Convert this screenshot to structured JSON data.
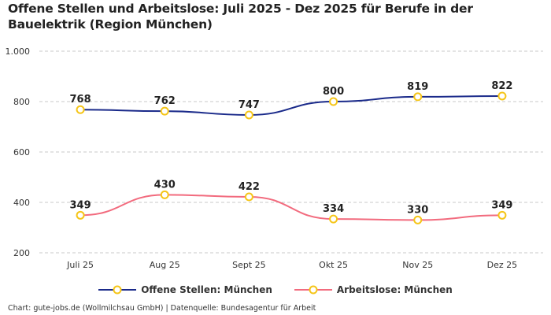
{
  "title": "Offene Stellen und Arbeitslose: Juli 2025 - Dez 2025 für Berufe in der Bauelektrik (Region München)",
  "source": "Chart: gute-jobs.de (Wollmilchsau GmbH) | Datenquelle: Bundesagentur für Arbeit",
  "chart_data": {
    "type": "line",
    "categories": [
      "Juli 25",
      "Aug 25",
      "Sept 25",
      "Okt 25",
      "Nov 25",
      "Dez 25"
    ],
    "ylim": [
      200,
      1000
    ],
    "yticks": [
      200,
      400,
      600,
      800,
      1000
    ],
    "ytick_labels": [
      "200",
      "400",
      "600",
      "800",
      "1.000"
    ],
    "grid": true,
    "legend_position": "bottom",
    "marker_color": "#f5c518",
    "series": [
      {
        "name": "Offene Stellen: München",
        "color": "#1a2a8a",
        "values": [
          768,
          762,
          747,
          800,
          819,
          822
        ]
      },
      {
        "name": "Arbeitslose: München",
        "color": "#f26b7e",
        "values": [
          349,
          430,
          422,
          334,
          330,
          349
        ]
      }
    ]
  }
}
